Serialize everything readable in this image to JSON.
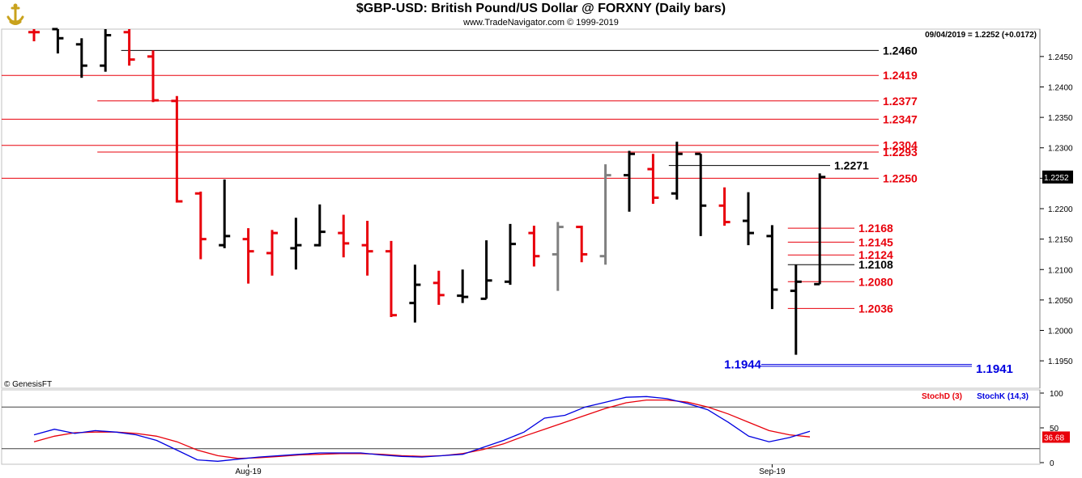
{
  "header": {
    "title": "$GBP-USD:  British Pound/US Dollar @ FORXNY  (Daily bars)",
    "subtitle": "www.TradeNavigator.com © 1999-2019",
    "readout": "09/04/2019 = 1.2252 (+0.0172)",
    "copyright": "© GenesisFT",
    "last_price_badge": "1.2252"
  },
  "colors": {
    "up_bar": "#000000",
    "down_bar": "#e8000b",
    "neutral_bar": "#808080",
    "level_red": "#e8000b",
    "level_black": "#000000",
    "level_blue": "#0000e0",
    "stoch_d": "#e8000b",
    "stoch_k": "#0000e0"
  },
  "chart_data": [
    {
      "type": "ohlc",
      "title": "$GBP-USD:  British Pound/US Dollar @ FORXNY  (Daily bars)",
      "ylim": [
        1.1905,
        1.2495
      ],
      "y_ticks": [
        1.195,
        1.2,
        1.205,
        1.21,
        1.215,
        1.22,
        1.225,
        1.23,
        1.235,
        1.24,
        1.245
      ],
      "y_tick_labels": [
        "1.1950",
        "1.2000",
        "1.2050",
        "1.2100",
        "1.2150",
        "1.2200",
        "1.2250",
        "1.2300",
        "1.2350",
        "1.2400",
        "1.2450"
      ],
      "x_labels": [
        {
          "label": "Aug-19",
          "bar_index": 9
        },
        {
          "label": "Sep-19",
          "bar_index": 31
        }
      ],
      "bars": [
        {
          "o": 1.249,
          "h": 1.25,
          "l": 1.2475,
          "c": 1.249,
          "color": "down"
        },
        {
          "o": 1.2495,
          "h": 1.25,
          "l": 1.2455,
          "c": 1.248,
          "color": "up"
        },
        {
          "o": 1.247,
          "h": 1.248,
          "l": 1.2415,
          "c": 1.2435,
          "color": "up"
        },
        {
          "o": 1.2435,
          "h": 1.25,
          "l": 1.2425,
          "c": 1.2485,
          "color": "up"
        },
        {
          "o": 1.249,
          "h": 1.2495,
          "l": 1.2435,
          "c": 1.2445,
          "color": "down"
        },
        {
          "o": 1.245,
          "h": 1.246,
          "l": 1.2375,
          "c": 1.2378,
          "color": "down"
        },
        {
          "o": 1.2377,
          "h": 1.2385,
          "l": 1.221,
          "c": 1.2212,
          "color": "down"
        },
        {
          "o": 1.2225,
          "h": 1.2228,
          "l": 1.2117,
          "c": 1.215,
          "color": "down"
        },
        {
          "o": 1.214,
          "h": 1.2248,
          "l": 1.2135,
          "c": 1.2155,
          "color": "up"
        },
        {
          "o": 1.215,
          "h": 1.2168,
          "l": 1.2077,
          "c": 1.213,
          "color": "down"
        },
        {
          "o": 1.2127,
          "h": 1.2165,
          "l": 1.209,
          "c": 1.216,
          "color": "down"
        },
        {
          "o": 1.2135,
          "h": 1.2185,
          "l": 1.21,
          "c": 1.214,
          "color": "up"
        },
        {
          "o": 1.214,
          "h": 1.2207,
          "l": 1.2138,
          "c": 1.2162,
          "color": "up"
        },
        {
          "o": 1.216,
          "h": 1.219,
          "l": 1.212,
          "c": 1.2143,
          "color": "down"
        },
        {
          "o": 1.214,
          "h": 1.218,
          "l": 1.209,
          "c": 1.213,
          "color": "down"
        },
        {
          "o": 1.213,
          "h": 1.2147,
          "l": 1.2022,
          "c": 1.2025,
          "color": "down"
        },
        {
          "o": 1.2045,
          "h": 1.2108,
          "l": 1.2013,
          "c": 1.2075,
          "color": "up"
        },
        {
          "o": 1.2078,
          "h": 1.2098,
          "l": 1.2042,
          "c": 1.2058,
          "color": "down"
        },
        {
          "o": 1.2057,
          "h": 1.21,
          "l": 1.2045,
          "c": 1.2055,
          "color": "up"
        },
        {
          "o": 1.2052,
          "h": 1.2148,
          "l": 1.2052,
          "c": 1.2082,
          "color": "up"
        },
        {
          "o": 1.208,
          "h": 1.2175,
          "l": 1.2075,
          "c": 1.2142,
          "color": "up"
        },
        {
          "o": 1.216,
          "h": 1.2172,
          "l": 1.2105,
          "c": 1.2122,
          "color": "down"
        },
        {
          "o": 1.2125,
          "h": 1.2178,
          "l": 1.2065,
          "c": 1.217,
          "color": "neutral"
        },
        {
          "o": 1.217,
          "h": 1.2172,
          "l": 1.2112,
          "c": 1.2125,
          "color": "down"
        },
        {
          "o": 1.2122,
          "h": 1.2273,
          "l": 1.2108,
          "c": 1.2255,
          "color": "neutral"
        },
        {
          "o": 1.2255,
          "h": 1.2295,
          "l": 1.2195,
          "c": 1.229,
          "color": "up"
        },
        {
          "o": 1.2265,
          "h": 1.229,
          "l": 1.2208,
          "c": 1.2218,
          "color": "down"
        },
        {
          "o": 1.2225,
          "h": 1.231,
          "l": 1.2215,
          "c": 1.229,
          "color": "up"
        },
        {
          "o": 1.229,
          "h": 1.229,
          "l": 1.2155,
          "c": 1.2205,
          "color": "up"
        },
        {
          "o": 1.2205,
          "h": 1.2235,
          "l": 1.2172,
          "c": 1.2178,
          "color": "down"
        },
        {
          "o": 1.218,
          "h": 1.2227,
          "l": 1.214,
          "c": 1.216,
          "color": "up"
        },
        {
          "o": 1.2155,
          "h": 1.2173,
          "l": 1.2035,
          "c": 1.2067,
          "color": "up"
        },
        {
          "o": 1.2065,
          "h": 1.2108,
          "l": 1.196,
          "c": 1.208,
          "color": "up"
        },
        {
          "o": 1.2076,
          "h": 1.2258,
          "l": 1.2076,
          "c": 1.2252,
          "color": "up"
        }
      ],
      "levels": [
        {
          "label": "1.2460",
          "value": 1.246,
          "color": "black",
          "start_bar": 4
        },
        {
          "label": "1.2419",
          "value": 1.2419,
          "color": "red",
          "start_bar": -1
        },
        {
          "label": "1.2377",
          "value": 1.2377,
          "color": "red",
          "start_bar": 3
        },
        {
          "label": "1.2347",
          "value": 1.2347,
          "color": "red",
          "start_bar": -1
        },
        {
          "label": "1.2304",
          "value": 1.2304,
          "color": "red",
          "start_bar": -1
        },
        {
          "label": "1.2293",
          "value": 1.2293,
          "color": "red",
          "start_bar": 3
        },
        {
          "label": "1.2271",
          "value": 1.2271,
          "color": "black",
          "start_bar": 27
        },
        {
          "label": "1.2250",
          "value": 1.225,
          "color": "red",
          "start_bar": -1
        },
        {
          "label": "1.2168",
          "value": 1.2168,
          "color": "red",
          "start_bar": 32
        },
        {
          "label": "1.2145",
          "value": 1.2145,
          "color": "red",
          "start_bar": 32
        },
        {
          "label": "1.2124",
          "value": 1.2124,
          "color": "red",
          "start_bar": 32
        },
        {
          "label": "1.2108",
          "value": 1.2108,
          "color": "black",
          "start_bar": 32
        },
        {
          "label": "1.2080",
          "value": 1.208,
          "color": "red",
          "start_bar": 32
        },
        {
          "label": "1.2036",
          "value": 1.2036,
          "color": "red",
          "start_bar": 32
        }
      ],
      "blue_levels": [
        {
          "left_label": "1.1944",
          "right_label": "1.1941",
          "values": [
            1.1944,
            1.1941
          ]
        }
      ]
    },
    {
      "type": "line",
      "title": "",
      "legend": [
        "StochD (3)",
        "StochK (14,3)"
      ],
      "ylim": [
        0,
        100
      ],
      "y_tick_labels": [
        "100",
        "50",
        "0"
      ],
      "last_value_label": "36.68",
      "reference_lines": [
        80,
        20
      ],
      "series": [
        {
          "name": "StochD (3)",
          "color": "red",
          "values": [
            30,
            38,
            43,
            44,
            44,
            42,
            38,
            30,
            18,
            10,
            6,
            7,
            9,
            11,
            12,
            13,
            13,
            12,
            10,
            9,
            10,
            13,
            19,
            27,
            38,
            48,
            58,
            68,
            78,
            86,
            90,
            90,
            87,
            80,
            70,
            58,
            46,
            40,
            37
          ]
        },
        {
          "name": "StochK (14,3)",
          "color": "blue",
          "values": [
            40,
            48,
            42,
            46,
            44,
            40,
            32,
            18,
            4,
            2,
            5,
            8,
            10,
            12,
            14,
            14,
            14,
            11,
            9,
            8,
            10,
            12,
            22,
            32,
            44,
            64,
            68,
            80,
            87,
            94,
            95,
            92,
            85,
            76,
            58,
            38,
            30,
            36,
            45
          ]
        }
      ]
    }
  ]
}
